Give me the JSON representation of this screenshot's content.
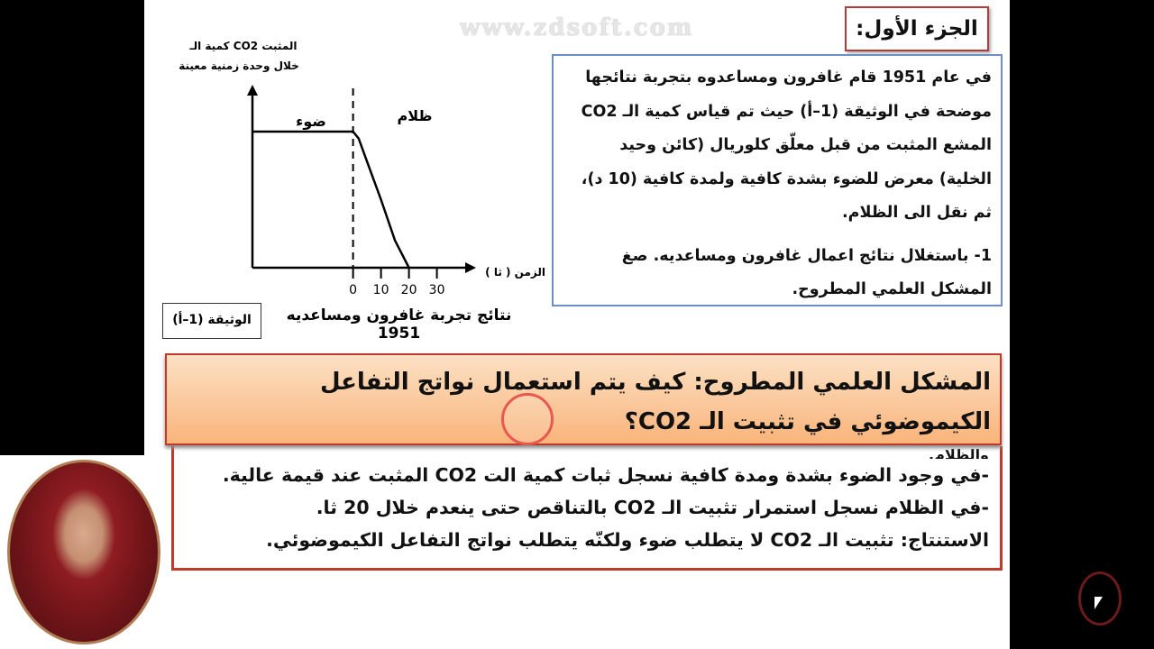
{
  "slide": {
    "title": "الجزء الأول:",
    "watermark": "www.zdsoft.com",
    "intro_text": "في عام 1951 قام غافرون ومساعدوه بتجربة نتائجها موضحة في الوثيقة (1–أ) حيث تم قياس كمية الـ CO2 المشع المثبت من قبل معلّق كلوريال (كائن وحيد الخلية) معرض للضوء بشدة كافية ولمدة كافية (10 د)، ثم نقل الى الظلام.",
    "question": "1- باستغلال نتائج اعمال غافرون ومساعديه. صغ المشكل العلمي المطروح.",
    "document_label": "الوثيقة (1–أ)",
    "document_caption": "نتائج تجربة غافرون ومساعديه 1951",
    "banner": "المشكل العلمي المطروح: كيف يتم استعمال نواتج التفاعل الكيموضوئي في تثبيت الـ CO2؟",
    "answers": [
      "والظلام.",
      "-في وجود الضوء بشدة ومدة كافية نسجل ثبات كمية الت CO2 المثبت عند قيمة عالية.",
      "-في الظلام نسجل استمرار تثبيت الـ CO2 بالتناقص حتى ينعدم خلال 20 ثا.",
      "الاستنتاج: تثبيت الـ CO2 لا يتطلب ضوء ولكنّه يتطلب نواتج التفاعل الكيموضوئي."
    ]
  },
  "chart_data": {
    "type": "line",
    "ylabel_line1": "كمية الـ CO2 المثبت",
    "ylabel_line2": "خلال وحدة زمنية معينة",
    "xlabel": "الزمن ( ثا )",
    "xticks": [
      "0",
      "10",
      "20",
      "30"
    ],
    "region_light": "ضوء",
    "region_dark": "ظلام",
    "x": [
      -36,
      0,
      2,
      5,
      10,
      15,
      20
    ],
    "y": [
      1.0,
      1.0,
      0.95,
      0.78,
      0.5,
      0.2,
      0
    ],
    "xlim": [
      -36,
      44
    ],
    "divider_x": 0
  },
  "colors": {
    "frame": "#b23b3b",
    "text_box_border": "#6b8fc2",
    "banner_top": "#fce1c4",
    "banner_bottom": "#f9b47a"
  }
}
